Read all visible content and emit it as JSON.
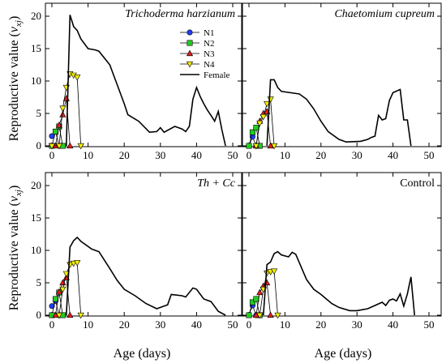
{
  "chart_data": [
    {
      "type": "line",
      "panel": "top-left",
      "title": "Trichoderma harzianum",
      "title_style": "italic",
      "title_position": "top-right",
      "xlabel": "",
      "ylabel": "Reproductive value (v_xj)",
      "xlim": [
        0,
        52
      ],
      "ylim": [
        0,
        22
      ],
      "xticks": [
        0,
        10,
        20,
        30,
        40,
        50
      ],
      "yticks": [
        0,
        5,
        10,
        15,
        20
      ],
      "series": [
        {
          "name": "N1",
          "points": [
            [
              0,
              1.5
            ],
            [
              1,
              2.2
            ],
            [
              2,
              0
            ]
          ]
        },
        {
          "name": "N2",
          "points": [
            [
              0,
              0
            ],
            [
              1,
              2.2
            ],
            [
              2,
              3.0
            ],
            [
              3,
              0
            ]
          ]
        },
        {
          "name": "N3",
          "points": [
            [
              1,
              0
            ],
            [
              2,
              3.2
            ],
            [
              3,
              4.8
            ],
            [
              4,
              7.3
            ],
            [
              5,
              0
            ]
          ]
        },
        {
          "name": "N4",
          "points": [
            [
              0,
              0
            ],
            [
              2,
              0
            ],
            [
              3,
              5.8
            ],
            [
              4,
              9.0
            ],
            [
              5,
              11.1
            ],
            [
              6,
              10.9
            ],
            [
              7,
              10.6
            ],
            [
              8,
              0
            ]
          ]
        },
        {
          "name": "Female",
          "points": [
            [
              4,
              0
            ],
            [
              5,
              20.2
            ],
            [
              6,
              18.4
            ],
            [
              7,
              17.8
            ],
            [
              8,
              16.5
            ],
            [
              10,
              15.0
            ],
            [
              12,
              14.8
            ],
            [
              13,
              14.6
            ],
            [
              16,
              12.5
            ],
            [
              18,
              9.5
            ],
            [
              20,
              6.5
            ],
            [
              21,
              4.8
            ],
            [
              24,
              3.8
            ],
            [
              27,
              2.1
            ],
            [
              29,
              2.2
            ],
            [
              30,
              2.8
            ],
            [
              31,
              2.1
            ],
            [
              34,
              3.0
            ],
            [
              36,
              2.6
            ],
            [
              37,
              2.2
            ],
            [
              38,
              3.0
            ],
            [
              39,
              7.2
            ],
            [
              40,
              9.0
            ],
            [
              41,
              7.6
            ],
            [
              42,
              6.5
            ],
            [
              43,
              5.5
            ],
            [
              44,
              4.7
            ],
            [
              45,
              3.8
            ],
            [
              46,
              5.3
            ],
            [
              47,
              2.5
            ],
            [
              48,
              0
            ]
          ]
        }
      ]
    },
    {
      "type": "line",
      "panel": "top-right",
      "title": "Chaetomium cupreum",
      "title_style": "italic",
      "title_position": "top-right",
      "xlabel": "",
      "ylabel": "",
      "xlim": [
        0,
        52
      ],
      "ylim": [
        0,
        22
      ],
      "xticks": [
        0,
        10,
        20,
        30,
        40,
        50
      ],
      "yticks": [
        0,
        5,
        10,
        15,
        20
      ],
      "series": [
        {
          "name": "N1",
          "points": [
            [
              0,
              0
            ],
            [
              1,
              1.4
            ],
            [
              2,
              0
            ]
          ]
        },
        {
          "name": "N2",
          "points": [
            [
              0,
              0
            ],
            [
              1,
              2.1
            ],
            [
              2,
              2.8
            ],
            [
              3,
              0
            ]
          ]
        },
        {
          "name": "N3",
          "points": [
            [
              2,
              0
            ],
            [
              3,
              3.8
            ],
            [
              4,
              5.0
            ],
            [
              5,
              5.3
            ],
            [
              6,
              0
            ]
          ]
        },
        {
          "name": "N4",
          "points": [
            [
              2,
              0
            ],
            [
              3,
              3.5
            ],
            [
              4,
              4.5
            ],
            [
              5,
              6.5
            ],
            [
              6,
              7.2
            ],
            [
              7,
              0
            ]
          ]
        },
        {
          "name": "Female",
          "points": [
            [
              5,
              0
            ],
            [
              6,
              10.2
            ],
            [
              7,
              10.2
            ],
            [
              8,
              9.0
            ],
            [
              9,
              8.4
            ],
            [
              14,
              8.0
            ],
            [
              16,
              7.2
            ],
            [
              18,
              5.7
            ],
            [
              20,
              3.8
            ],
            [
              22,
              2.2
            ],
            [
              25,
              1.0
            ],
            [
              27,
              0.6
            ],
            [
              31,
              0.7
            ],
            [
              33,
              1.0
            ],
            [
              34,
              1.3
            ],
            [
              35,
              1.5
            ],
            [
              36,
              4.7
            ],
            [
              37,
              4.0
            ],
            [
              38,
              4.2
            ],
            [
              39,
              7.0
            ],
            [
              40,
              8.2
            ],
            [
              42,
              8.7
            ],
            [
              43,
              4.0
            ],
            [
              44,
              4.0
            ],
            [
              45,
              0
            ]
          ]
        }
      ]
    },
    {
      "type": "line",
      "panel": "bottom-left",
      "title": "Th + Cc",
      "title_style": "italic",
      "title_position": "top-right",
      "xlabel": "Age (days)",
      "ylabel": "Reproductive value (v_xj)",
      "xlim": [
        0,
        52
      ],
      "ylim": [
        0,
        22
      ],
      "xticks": [
        0,
        10,
        20,
        30,
        40,
        50
      ],
      "yticks": [
        0,
        5,
        10,
        15,
        20
      ],
      "series": [
        {
          "name": "N1",
          "points": [
            [
              0,
              1.4
            ],
            [
              1,
              2.2
            ],
            [
              2,
              0
            ]
          ]
        },
        {
          "name": "N2",
          "points": [
            [
              0,
              0
            ],
            [
              1,
              2.5
            ],
            [
              2,
              3.5
            ],
            [
              3,
              0
            ]
          ]
        },
        {
          "name": "N3",
          "points": [
            [
              1,
              0
            ],
            [
              2,
              3.6
            ],
            [
              3,
              5.0
            ],
            [
              4,
              5.8
            ],
            [
              5,
              0
            ]
          ]
        },
        {
          "name": "N4",
          "points": [
            [
              2,
              0
            ],
            [
              3,
              4.0
            ],
            [
              4,
              6.4
            ],
            [
              5,
              7.8
            ],
            [
              6,
              8.0
            ],
            [
              7,
              8.1
            ],
            [
              8,
              0
            ]
          ]
        },
        {
          "name": "Female",
          "points": [
            [
              4,
              0
            ],
            [
              5,
              10.5
            ],
            [
              6,
              11.5
            ],
            [
              7,
              12.0
            ],
            [
              8,
              11.4
            ],
            [
              11,
              10.2
            ],
            [
              13,
              9.8
            ],
            [
              16,
              7.2
            ],
            [
              18,
              5.4
            ],
            [
              20,
              4.0
            ],
            [
              23,
              3.0
            ],
            [
              26,
              1.8
            ],
            [
              29,
              1.0
            ],
            [
              31,
              1.4
            ],
            [
              32,
              1.6
            ],
            [
              33,
              3.2
            ],
            [
              36,
              3.0
            ],
            [
              37,
              2.8
            ],
            [
              39,
              4.2
            ],
            [
              40,
              4.0
            ],
            [
              42,
              2.5
            ],
            [
              44,
              2.1
            ],
            [
              46,
              0.6
            ],
            [
              48,
              0
            ]
          ]
        }
      ]
    },
    {
      "type": "line",
      "panel": "bottom-right",
      "title": "Control",
      "title_style": "normal",
      "title_position": "top-right",
      "xlabel": "Age (days)",
      "ylabel": "",
      "xlim": [
        0,
        52
      ],
      "ylim": [
        0,
        22
      ],
      "xticks": [
        0,
        10,
        20,
        30,
        40,
        50
      ],
      "yticks": [
        0,
        5,
        10,
        15,
        20
      ],
      "series": [
        {
          "name": "N1",
          "points": [
            [
              0,
              0
            ],
            [
              1,
              1.5
            ],
            [
              2,
              0
            ]
          ]
        },
        {
          "name": "N2",
          "points": [
            [
              0,
              0
            ],
            [
              1,
              2.0
            ],
            [
              2,
              2.5
            ],
            [
              3,
              0
            ]
          ]
        },
        {
          "name": "N3",
          "points": [
            [
              2,
              0
            ],
            [
              3,
              3.5
            ],
            [
              4,
              4.5
            ],
            [
              5,
              5.0
            ],
            [
              6,
              0
            ]
          ]
        },
        {
          "name": "N4",
          "points": [
            [
              3,
              0
            ],
            [
              4,
              4.0
            ],
            [
              5,
              6.5
            ],
            [
              6,
              6.7
            ],
            [
              7,
              6.8
            ],
            [
              8,
              0
            ]
          ]
        },
        {
          "name": "Female",
          "points": [
            [
              4,
              0
            ],
            [
              5,
              7.8
            ],
            [
              6,
              8.2
            ],
            [
              7,
              9.5
            ],
            [
              8,
              9.8
            ],
            [
              9,
              9.3
            ],
            [
              11,
              9.0
            ],
            [
              12,
              9.7
            ],
            [
              13,
              9.4
            ],
            [
              16,
              5.5
            ],
            [
              18,
              4.0
            ],
            [
              20,
              3.2
            ],
            [
              23,
              1.8
            ],
            [
              25,
              1.2
            ],
            [
              28,
              0.7
            ],
            [
              30,
              0.7
            ],
            [
              33,
              1.0
            ],
            [
              35,
              1.5
            ],
            [
              37,
              2.0
            ],
            [
              38,
              1.5
            ],
            [
              39,
              2.3
            ],
            [
              40,
              2.5
            ],
            [
              41,
              2.2
            ],
            [
              42,
              3.3
            ],
            [
              43,
              1.4
            ],
            [
              44,
              3.3
            ],
            [
              45,
              5.9
            ],
            [
              46,
              0
            ]
          ]
        }
      ]
    }
  ],
  "legend": {
    "position": "top-left panel, upper right",
    "entries": [
      {
        "name": "N1",
        "marker": "circle",
        "color": "#1f3fff"
      },
      {
        "name": "N2",
        "marker": "square",
        "color": "#22cc22"
      },
      {
        "name": "N3",
        "marker": "triangle-up",
        "color": "#e02020"
      },
      {
        "name": "N4",
        "marker": "triangle-down",
        "color": "#f5f000"
      },
      {
        "name": "Female",
        "marker": "line",
        "color": "#000000"
      }
    ]
  },
  "labels": {
    "ylabel_main": "Reproductive value (",
    "ylabel_var": "v",
    "ylabel_sub": "xj",
    "ylabel_end": ")",
    "xlabel": "Age (days)"
  },
  "colors": {
    "N1": "#1f3fff",
    "N2": "#22cc22",
    "N3": "#e02020",
    "N4": "#f5f000",
    "Female": "#000000"
  }
}
